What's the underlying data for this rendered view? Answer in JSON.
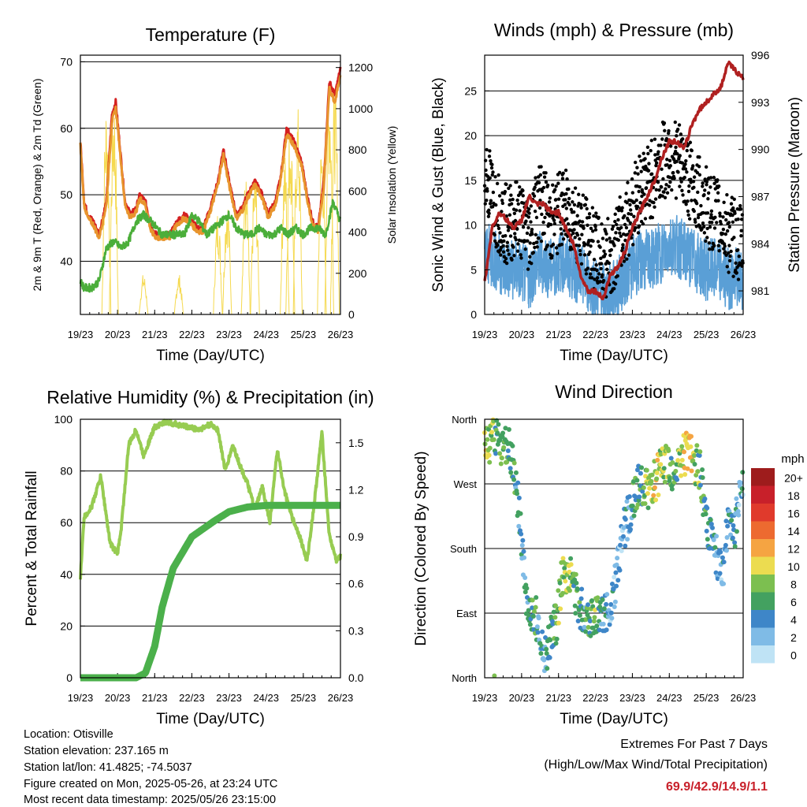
{
  "chart_data": [
    {
      "id": "temperature",
      "type": "line",
      "title": "Temperature (F)",
      "xlabel": "Time (Day/UTC)",
      "ylabel": "2m & 9m T (Red, Orange) & 2m Td (Green)",
      "y2label": "Solar Insolation (Yellow)",
      "x_ticks": [
        "19/23",
        "20/23",
        "21/23",
        "22/23",
        "23/23",
        "24/23",
        "25/23",
        "26/23"
      ],
      "xlim": [
        0,
        7
      ],
      "ylim": [
        32,
        71
      ],
      "y_ticks": [
        40,
        50,
        60,
        70
      ],
      "y2lim": [
        0,
        1260
      ],
      "y2_ticks": [
        0,
        200,
        400,
        600,
        800,
        1000,
        1200
      ],
      "series": [
        {
          "color": "#d42020",
          "x": [
            0,
            0.1,
            0.2,
            0.35,
            0.5,
            0.7,
            0.85,
            0.95,
            1.05,
            1.2,
            1.35,
            1.5,
            1.6,
            1.75,
            1.9,
            2.05,
            2.2,
            2.4,
            2.6,
            2.8,
            3.0,
            3.15,
            3.3,
            3.5,
            3.7,
            3.85,
            4.0,
            4.2,
            4.35,
            4.5,
            4.7,
            4.9,
            5.05,
            5.25,
            5.4,
            5.55,
            5.75,
            5.95,
            6.1,
            6.25,
            6.4,
            6.55,
            6.7,
            6.85,
            7.0
          ],
          "values": [
            58,
            49,
            47,
            46,
            44,
            49,
            62,
            64,
            58,
            49,
            47,
            48,
            50,
            49,
            45,
            44,
            44,
            44,
            46,
            47,
            46,
            45,
            45,
            48,
            52,
            57,
            52,
            47,
            48,
            50,
            52,
            50,
            47,
            49,
            53,
            60,
            58,
            55,
            50,
            46,
            45,
            52,
            67,
            65,
            69
          ]
        },
        {
          "color": "#e8952e",
          "x": [
            0,
            0.1,
            0.2,
            0.35,
            0.5,
            0.7,
            0.85,
            0.95,
            1.05,
            1.2,
            1.35,
            1.5,
            1.6,
            1.75,
            1.9,
            2.05,
            2.2,
            2.4,
            2.6,
            2.8,
            3.0,
            3.15,
            3.3,
            3.5,
            3.7,
            3.85,
            4.0,
            4.2,
            4.35,
            4.5,
            4.7,
            4.9,
            5.05,
            5.25,
            5.4,
            5.55,
            5.75,
            5.95,
            6.1,
            6.25,
            6.4,
            6.55,
            6.7,
            6.85,
            7.0
          ],
          "values": [
            57.5,
            48.5,
            46.5,
            45.5,
            43.5,
            48.5,
            61,
            63,
            57.5,
            48.5,
            46.5,
            47.5,
            49.5,
            48.5,
            44.5,
            43.5,
            43.5,
            43.5,
            45.5,
            46.5,
            45.5,
            44.5,
            44.5,
            47.5,
            51.5,
            56,
            51.5,
            46.5,
            47.5,
            49.5,
            51.5,
            49.5,
            46.5,
            48.5,
            52.5,
            59,
            57.5,
            54.5,
            49.5,
            45.5,
            44.5,
            51,
            66,
            64,
            68
          ]
        },
        {
          "color": "#4bae3a",
          "x": [
            0,
            0.1,
            0.3,
            0.5,
            0.7,
            0.9,
            1.1,
            1.3,
            1.5,
            1.7,
            1.9,
            2.2,
            2.5,
            2.8,
            3.0,
            3.2,
            3.4,
            3.6,
            3.8,
            4.0,
            4.2,
            4.4,
            4.6,
            4.8,
            5.0,
            5.2,
            5.4,
            5.6,
            5.8,
            6.0,
            6.2,
            6.4,
            6.6,
            6.8,
            7.0
          ],
          "values": [
            37,
            36,
            36,
            37,
            42,
            43,
            42,
            43,
            46,
            47,
            46,
            44,
            44,
            44,
            47,
            46,
            44,
            45,
            46,
            47,
            45,
            44,
            44,
            45,
            44,
            44,
            45,
            44,
            45,
            44,
            45,
            45,
            44,
            49,
            46
          ]
        }
      ],
      "solar_series": {
        "color": "#f5d94e",
        "peaks_x": [
          0.7,
          0.9,
          1.7,
          2.65,
          3.7,
          3.95,
          4.45,
          4.7,
          5.5,
          5.65,
          5.85,
          6.5,
          6.7,
          6.85
        ],
        "peaks_value": [
          1050,
          1100,
          200,
          200,
          520,
          590,
          680,
          720,
          800,
          980,
          1020,
          880,
          1200,
          1150
        ],
        "note_width": 0.12
      }
    },
    {
      "id": "winds",
      "type": "line",
      "title": "Winds (mph) & Pressure (mb)",
      "xlabel": "Time (Day/UTC)",
      "ylabel": "Sonic Wind & Gust (Blue, Black)",
      "y2label": "Station Pressure (Maroon)",
      "x_ticks": [
        "19/23",
        "20/23",
        "21/23",
        "22/23",
        "23/23",
        "24/23",
        "25/23",
        "26/23"
      ],
      "xlim": [
        0,
        7
      ],
      "ylim": [
        0,
        29
      ],
      "y_ticks": [
        0,
        5,
        10,
        15,
        20,
        25
      ],
      "y2lim": [
        979.5,
        996
      ],
      "y2_ticks": [
        981,
        984,
        987,
        990,
        993,
        996
      ],
      "series": [
        {
          "name": "",
          "color": "#5a9fd6",
          "x": [
            0,
            0.3,
            0.6,
            0.9,
            1.2,
            1.5,
            1.8,
            2.1,
            2.4,
            2.7,
            3.0,
            3.3,
            3.6,
            3.9,
            4.2,
            4.5,
            4.8,
            5.1,
            5.4,
            5.7,
            6.0,
            6.3,
            6.6,
            6.9
          ],
          "values": [
            7,
            6,
            5,
            5,
            4,
            6,
            5,
            6,
            5,
            4,
            3,
            2,
            3,
            5,
            6,
            6,
            7,
            8,
            7,
            6,
            5,
            5,
            4,
            4
          ]
        },
        {
          "name": "",
          "color": "#000000",
          "x": [
            0,
            0.3,
            0.6,
            0.9,
            1.2,
            1.5,
            1.8,
            2.1,
            2.4,
            2.7,
            3.0,
            3.3,
            3.6,
            3.9,
            4.2,
            4.5,
            4.8,
            5.1,
            5.4,
            5.7,
            6.0,
            6.3,
            6.6,
            6.9
          ],
          "values": [
            16,
            12,
            10,
            11,
            9,
            13,
            10,
            12,
            11,
            9,
            7,
            6,
            8,
            11,
            14,
            15,
            17,
            18,
            16,
            14,
            12,
            11,
            9,
            8
          ]
        },
        {
          "name": "",
          "color": "#b02020",
          "axis": "y2",
          "x": [
            0,
            0.2,
            0.4,
            0.6,
            0.8,
            1.0,
            1.2,
            1.4,
            1.6,
            1.8,
            2.0,
            2.2,
            2.4,
            2.6,
            2.8,
            3.0,
            3.2,
            3.4,
            3.6,
            3.8,
            4.0,
            4.2,
            4.4,
            4.6,
            4.8,
            5.0,
            5.2,
            5.4,
            5.6,
            5.8,
            6.0,
            6.2,
            6.4,
            6.6,
            6.8,
            7.0
          ],
          "values": [
            981.5,
            985,
            986,
            985.5,
            985,
            985.5,
            987,
            986.5,
            986.5,
            986,
            986,
            985,
            984,
            982,
            981,
            981,
            980.5,
            982,
            982.5,
            983.5,
            985,
            986,
            987,
            988,
            989.5,
            990.5,
            990.5,
            990,
            991.5,
            992.5,
            993,
            993.5,
            994,
            995.5,
            995,
            994.5
          ]
        }
      ]
    },
    {
      "id": "humidity",
      "type": "line",
      "title": "Relative Humidity (%) & Precipitation (in)",
      "xlabel": "Time (Day/UTC)",
      "ylabel": "Percent & Total Rainfall",
      "x_ticks": [
        "19/23",
        "20/23",
        "21/23",
        "22/23",
        "23/23",
        "24/23",
        "25/23",
        "26/23"
      ],
      "xlim": [
        0,
        7
      ],
      "ylim": [
        0,
        100
      ],
      "y_ticks": [
        0,
        20,
        40,
        60,
        80,
        100
      ],
      "y2lim": [
        0,
        1.65
      ],
      "y2_ticks": [
        "0.0",
        "0.3",
        "0.6",
        "0.9",
        "1.2",
        "1.5"
      ],
      "series": [
        {
          "name": "",
          "color": "#97cc52",
          "x": [
            0,
            0.1,
            0.3,
            0.55,
            0.8,
            1.0,
            1.1,
            1.3,
            1.5,
            1.7,
            2.0,
            2.3,
            2.6,
            2.9,
            3.2,
            3.5,
            3.7,
            3.9,
            4.1,
            4.3,
            4.5,
            4.7,
            4.9,
            5.1,
            5.3,
            5.5,
            5.7,
            5.9,
            6.1,
            6.3,
            6.5,
            6.7,
            6.9,
            7.0
          ],
          "values": [
            39,
            62,
            66,
            78,
            52,
            48,
            58,
            90,
            96,
            86,
            97,
            99,
            98,
            97,
            96,
            98,
            96,
            80,
            90,
            82,
            75,
            65,
            74,
            60,
            88,
            72,
            62,
            55,
            45,
            68,
            95,
            55,
            45,
            47
          ]
        },
        {
          "name": "",
          "color": "#4bb04b",
          "axis": "y2",
          "x": [
            0,
            0.5,
            1.0,
            1.5,
            1.75,
            2.0,
            2.2,
            2.5,
            3.0,
            3.3,
            3.6,
            4.0,
            4.5,
            5.0,
            5.5,
            6.0,
            6.5,
            7.0
          ],
          "values": [
            0,
            0,
            0,
            0,
            0.03,
            0.2,
            0.45,
            0.7,
            0.9,
            0.95,
            1.0,
            1.06,
            1.09,
            1.1,
            1.1,
            1.1,
            1.1,
            1.1
          ]
        }
      ]
    },
    {
      "id": "direction",
      "type": "scatter",
      "title": "Wind Direction",
      "xlabel": "Time (Day/UTC)",
      "ylabel": "Direction (Colored By Speed)",
      "x_ticks": [
        "19/23",
        "20/23",
        "21/23",
        "22/23",
        "23/23",
        "24/23",
        "25/23",
        "26/23"
      ],
      "xlim": [
        0,
        7
      ],
      "y_ticks": [
        "North",
        "West",
        "South",
        "East",
        "North"
      ],
      "ylim": [
        0,
        360
      ],
      "series": [
        {
          "name": "",
          "x": [
            0,
            0.15,
            0.3,
            0.45,
            0.6,
            0.75,
            0.9,
            1.05,
            1.2,
            1.35,
            1.5,
            1.65,
            1.8,
            1.95,
            2.1,
            2.25,
            2.4,
            2.55,
            2.7,
            2.85,
            3.0,
            3.15,
            3.3,
            3.45,
            3.6,
            3.75,
            3.9,
            4.05,
            4.2,
            4.35,
            4.5,
            4.65,
            4.8,
            4.95,
            5.1,
            5.25,
            5.4,
            5.55,
            5.7,
            5.85,
            6.0,
            6.15,
            6.3,
            6.45,
            6.6,
            6.75,
            6.9
          ],
          "values": [
            330,
            325,
            340,
            320,
            330,
            300,
            250,
            150,
            80,
            90,
            70,
            30,
            60,
            80,
            140,
            150,
            130,
            100,
            90,
            85,
            90,
            80,
            95,
            110,
            150,
            200,
            230,
            250,
            270,
            265,
            260,
            280,
            290,
            300,
            280,
            290,
            310,
            320,
            300,
            285,
            210,
            190,
            170,
            140,
            230,
            200,
            260
          ],
          "speeds": [
            10,
            8,
            6,
            9,
            7,
            6,
            4,
            3,
            5,
            6,
            3,
            4,
            5,
            7,
            8,
            9,
            7,
            6,
            5,
            6,
            8,
            5,
            4,
            3,
            2,
            3,
            4,
            5,
            6,
            8,
            9,
            10,
            8,
            9,
            6,
            7,
            10,
            11,
            8,
            6,
            5,
            4,
            3,
            3,
            4,
            5,
            3
          ]
        }
      ],
      "legend": {
        "title": "mph",
        "labels": [
          "20+",
          "18",
          "16",
          "14",
          "12",
          "10",
          "8",
          "6",
          "4",
          "2",
          "0"
        ],
        "colors": [
          "#9e1c1c",
          "#c8202a",
          "#e03a2c",
          "#ed6a30",
          "#f5a442",
          "#ecdc50",
          "#7cbf50",
          "#43a160",
          "#3e86c8",
          "#7fbbe6",
          "#bfe3f5"
        ]
      }
    }
  ],
  "info": {
    "location": "Location: Otisville",
    "elevation": "Station elevation: 237.165 m",
    "latlon": "Station lat/lon: 41.4825; -74.5037",
    "created": "Figure created on Mon, 2025-05-26, at 23:24 UTC",
    "recent": "Most recent data timestamp: 2025/05/26 23:15:00"
  },
  "extremes": {
    "line1": "Extremes For Past 7 Days",
    "line2": "(High/Low/Max Wind/Total Precipitation)",
    "values": "69.9/42.9/14.9/1.1"
  }
}
